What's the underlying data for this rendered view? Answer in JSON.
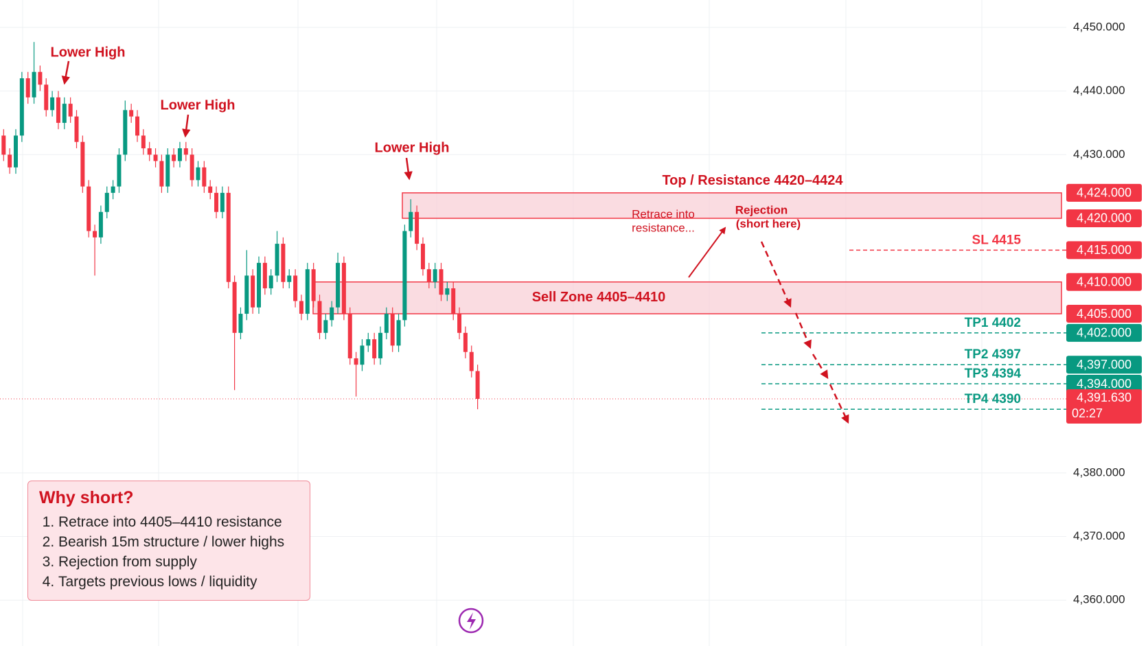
{
  "chart_data": {
    "type": "candlestick",
    "up_color": "#089981",
    "down_color": "#f23645",
    "open": [
      4433,
      4430,
      4428,
      4433,
      4442,
      4439,
      4443,
      4441,
      4437,
      4439,
      4435,
      4438,
      4436,
      4432,
      4425,
      4418,
      4417,
      4421,
      4424,
      4425,
      4430,
      4437,
      4436,
      4433,
      4431,
      4430,
      4429,
      4425,
      4430,
      4429,
      4431,
      4430,
      4426,
      4428,
      4425,
      4424,
      4421,
      4424,
      4410,
      4402,
      4405,
      4411,
      4406,
      4413,
      4409,
      4411,
      4416,
      4410,
      4411,
      4407,
      4405,
      4412,
      4407,
      4402,
      4404,
      4406,
      4413,
      4405,
      4398,
      4397,
      4400,
      4401,
      4398,
      4402,
      4405,
      4400,
      4404,
      4418,
      4421,
      4416,
      4412,
      4410,
      4412,
      4408,
      4409,
      4405,
      4402,
      4399,
      4396
    ],
    "high": [
      4434,
      4431,
      4434,
      4443,
      4443,
      4447.7,
      4444,
      4442,
      4440,
      4440,
      4439,
      4439,
      4437,
      4433,
      4426,
      4419,
      4422,
      4425,
      4426,
      4431,
      4438.5,
      4438,
      4437,
      4434,
      4432,
      4431,
      4430,
      4431,
      4431,
      4432,
      4432,
      4431,
      4429,
      4429,
      4426,
      4425,
      4425,
      4425,
      4411,
      4406,
      4415,
      4412,
      4414,
      4414,
      4412,
      4418,
      4417,
      4412,
      4412,
      4408,
      4413,
      4413,
      4408,
      4405,
      4407,
      4414.6,
      4414,
      4406,
      4399,
      4401,
      4402,
      4402,
      4403,
      4406,
      4406,
      4405,
      4419,
      4423,
      4422,
      4417,
      4413,
      4413,
      4413,
      4410,
      4410,
      4406,
      4403,
      4400,
      4397
    ],
    "low": [
      4429,
      4427,
      4427,
      4432,
      4438,
      4438,
      4440,
      4436,
      4436,
      4434,
      4434,
      4435,
      4431,
      4424,
      4417,
      4411,
      4416,
      4420,
      4423,
      4424,
      4429,
      4435,
      4432,
      4430,
      4429,
      4428,
      4424,
      4424,
      4428,
      4428,
      4429,
      4425,
      4425,
      4424,
      4423,
      4420,
      4420,
      4409,
      4393,
      4401,
      4404,
      4405,
      4405,
      4408,
      4408,
      4410,
      4409,
      4409,
      4406,
      4404,
      4404,
      4406,
      4401,
      4401,
      4403,
      4405,
      4404,
      4397,
      4392,
      4396,
      4399,
      4397,
      4397,
      4401,
      4399,
      4399,
      4403,
      4417,
      4415,
      4411,
      4409,
      4409,
      4407,
      4407,
      4404,
      4401,
      4398,
      4395,
      4390
    ],
    "close": [
      4430,
      4428,
      4433,
      4442,
      4439,
      4443,
      4441,
      4437,
      4439,
      4435,
      4438,
      4436,
      4432,
      4425,
      4418,
      4417,
      4421,
      4424,
      4425,
      4430,
      4437,
      4436,
      4433,
      4431,
      4430,
      4429,
      4425,
      4430,
      4429,
      4431,
      4430,
      4426,
      4428,
      4425,
      4424,
      4421,
      4424,
      4410,
      4402,
      4405,
      4411,
      4406,
      4413,
      4409,
      4411,
      4416,
      4410,
      4411,
      4407,
      4405,
      4412,
      4407,
      4402,
      4404,
      4406,
      4413,
      4405,
      4398,
      4397,
      4400,
      4401,
      4398,
      4402,
      4405,
      4400,
      4404,
      4418,
      4421,
      4416,
      4412,
      4410,
      4412,
      4408,
      4409,
      4405,
      4402,
      4399,
      4396,
      4391.63
    ],
    "ylim": [
      4352.8,
      4454.3
    ],
    "yticks": [
      {
        "value": 4450,
        "label": "4,450.000"
      },
      {
        "value": 4440,
        "label": "4,440.000"
      },
      {
        "value": 4430,
        "label": "4,430.000"
      },
      {
        "value": 4380,
        "label": "4,380.000"
      },
      {
        "value": 4370,
        "label": "4,370.000"
      },
      {
        "value": 4360,
        "label": "4,360.000"
      }
    ],
    "grid": true,
    "zones": [
      {
        "label": "Top / Resistance 4420–4424",
        "low": 4420,
        "high": 4424,
        "color": "#f23645"
      },
      {
        "label": "Sell Zone 4405–4410",
        "low": 4405,
        "high": 4410,
        "color": "#f23645"
      }
    ],
    "levels": [
      {
        "label": "SL 4415",
        "value": 4415,
        "color": "#f23645"
      },
      {
        "label": "TP1 4402",
        "value": 4402,
        "color": "#089981"
      },
      {
        "label": "TP2 4397",
        "value": 4397,
        "color": "#089981"
      },
      {
        "label": "TP3 4394",
        "value": 4394,
        "color": "#089981"
      },
      {
        "label": "TP4 4390",
        "value": 4390,
        "color": "#089981"
      }
    ],
    "price_tags": [
      {
        "value": 4424,
        "label": "4,424.000",
        "color": "#f23645"
      },
      {
        "value": 4420,
        "label": "4,420.000",
        "color": "#f23645"
      },
      {
        "value": 4415,
        "label": "4,415.000",
        "color": "#f23645"
      },
      {
        "value": 4410,
        "label": "4,410.000",
        "color": "#f23645"
      },
      {
        "value": 4405,
        "label": "4,405.000",
        "color": "#f23645"
      },
      {
        "value": 4402,
        "label": "4,402.000",
        "color": "#089981"
      },
      {
        "value": 4397,
        "label": "4,397.000",
        "color": "#089981"
      },
      {
        "value": 4394,
        "label": "4,394.000",
        "color": "#089981"
      }
    ],
    "last_price": {
      "value": 4391.63,
      "label": "4,391.630",
      "countdown": "02:27",
      "color": "#f23645"
    },
    "annotations": [
      "Lower High",
      "Lower High",
      "Lower High",
      "Retrace into",
      "resistance...",
      "Rejection",
      "(short here)"
    ],
    "note": {
      "title": "Why short?",
      "items": [
        "Retrace into 4405–4410 resistance",
        "Bearish 15m structure / lower highs",
        "Rejection from supply",
        "Targets previous lows / liquidity"
      ]
    }
  }
}
